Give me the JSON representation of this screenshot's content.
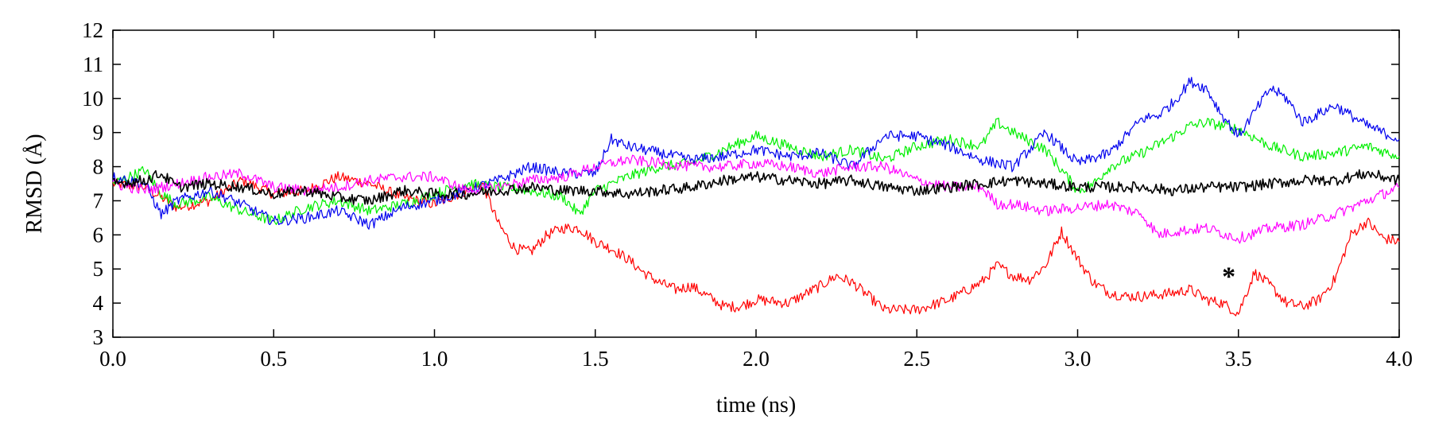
{
  "chart_data": {
    "type": "line",
    "title": "",
    "xlabel": "time (ns)",
    "ylabel": "RMSD (Å)",
    "xlim": [
      0.0,
      4.0
    ],
    "ylim": [
      3,
      12
    ],
    "xticks": [
      "0.0",
      "0.5",
      "1.0",
      "1.5",
      "2.0",
      "2.5",
      "3.0",
      "3.5",
      "4.0"
    ],
    "yticks": [
      "3",
      "4",
      "5",
      "6",
      "7",
      "8",
      "9",
      "10",
      "11",
      "12"
    ],
    "grid": false,
    "legend": "none",
    "annotations": [
      {
        "text": "*",
        "x": 3.47,
        "y": 4.85
      }
    ],
    "series": [
      {
        "color": "#ff0000",
        "x": [
          0.0,
          0.1,
          0.2,
          0.3,
          0.4,
          0.5,
          0.6,
          0.7,
          0.8,
          0.9,
          1.0,
          1.1,
          1.15,
          1.2,
          1.25,
          1.3,
          1.35,
          1.4,
          1.45,
          1.5,
          1.55,
          1.6,
          1.65,
          1.7,
          1.75,
          1.8,
          1.85,
          1.9,
          1.95,
          2.0,
          2.1,
          2.2,
          2.25,
          2.3,
          2.35,
          2.4,
          2.5,
          2.6,
          2.7,
          2.75,
          2.8,
          2.85,
          2.9,
          2.95,
          3.0,
          3.05,
          3.1,
          3.15,
          3.2,
          3.3,
          3.35,
          3.4,
          3.45,
          3.5,
          3.55,
          3.6,
          3.65,
          3.7,
          3.75,
          3.8,
          3.85,
          3.9,
          3.95,
          4.0
        ],
        "y": [
          7.5,
          7.4,
          6.8,
          7.0,
          7.6,
          7.2,
          7.3,
          7.7,
          7.5,
          7.1,
          6.9,
          7.3,
          7.5,
          6.3,
          5.6,
          5.5,
          6.0,
          6.2,
          6.2,
          5.8,
          5.6,
          5.3,
          4.9,
          4.6,
          4.4,
          4.5,
          4.2,
          3.9,
          3.9,
          4.1,
          4.0,
          4.5,
          4.8,
          4.6,
          4.2,
          3.8,
          3.8,
          4.1,
          4.6,
          5.1,
          4.8,
          4.7,
          5.1,
          6.1,
          5.3,
          4.6,
          4.3,
          4.2,
          4.2,
          4.3,
          4.4,
          4.1,
          4.0,
          3.7,
          4.9,
          4.5,
          4.0,
          3.9,
          4.1,
          4.7,
          6.0,
          6.4,
          5.9,
          5.8
        ]
      },
      {
        "color": "#00ee00",
        "x": [
          0.0,
          0.05,
          0.1,
          0.15,
          0.2,
          0.3,
          0.4,
          0.5,
          0.6,
          0.7,
          0.8,
          0.9,
          1.0,
          1.1,
          1.2,
          1.3,
          1.4,
          1.45,
          1.5,
          1.6,
          1.7,
          1.8,
          1.9,
          2.0,
          2.1,
          2.2,
          2.3,
          2.4,
          2.5,
          2.6,
          2.7,
          2.75,
          2.8,
          2.9,
          3.0,
          3.05,
          3.1,
          3.2,
          3.3,
          3.35,
          3.4,
          3.5,
          3.6,
          3.7,
          3.8,
          3.9,
          4.0
        ],
        "y": [
          7.5,
          7.7,
          7.9,
          7.2,
          6.9,
          7.1,
          6.7,
          6.4,
          6.8,
          7.0,
          6.7,
          6.9,
          7.2,
          7.5,
          7.4,
          7.3,
          7.1,
          6.6,
          7.3,
          7.7,
          8.0,
          8.1,
          8.5,
          8.9,
          8.6,
          8.3,
          8.5,
          8.2,
          8.6,
          8.8,
          8.6,
          9.3,
          9.0,
          8.5,
          7.3,
          7.5,
          8.0,
          8.4,
          8.9,
          9.2,
          9.3,
          9.1,
          8.6,
          8.3,
          8.4,
          8.6,
          8.3
        ]
      },
      {
        "color": "#0000ee",
        "x": [
          0.0,
          0.1,
          0.15,
          0.2,
          0.3,
          0.4,
          0.5,
          0.6,
          0.7,
          0.8,
          0.9,
          1.0,
          1.1,
          1.2,
          1.3,
          1.4,
          1.5,
          1.55,
          1.6,
          1.7,
          1.8,
          1.9,
          2.0,
          2.1,
          2.2,
          2.3,
          2.4,
          2.5,
          2.6,
          2.7,
          2.8,
          2.9,
          3.0,
          3.1,
          3.2,
          3.25,
          3.3,
          3.35,
          3.4,
          3.45,
          3.5,
          3.55,
          3.6,
          3.65,
          3.7,
          3.8,
          3.9,
          4.0
        ],
        "y": [
          7.7,
          7.5,
          6.6,
          7.0,
          7.3,
          6.9,
          6.4,
          6.5,
          6.7,
          6.3,
          6.8,
          7.0,
          7.3,
          7.6,
          8.0,
          7.8,
          7.8,
          8.8,
          8.6,
          8.4,
          8.2,
          8.3,
          8.5,
          8.3,
          8.4,
          8.0,
          8.9,
          8.9,
          8.6,
          8.2,
          8.0,
          9.0,
          8.1,
          8.4,
          9.4,
          9.5,
          9.9,
          10.5,
          10.3,
          9.5,
          8.9,
          9.6,
          10.3,
          10.0,
          9.3,
          9.8,
          9.2,
          8.8
        ]
      },
      {
        "color": "#ff00ff",
        "x": [
          0.0,
          0.1,
          0.2,
          0.3,
          0.4,
          0.5,
          0.6,
          0.7,
          0.8,
          0.9,
          1.0,
          1.1,
          1.2,
          1.3,
          1.4,
          1.5,
          1.6,
          1.7,
          1.8,
          1.9,
          2.0,
          2.1,
          2.2,
          2.3,
          2.4,
          2.5,
          2.6,
          2.7,
          2.75,
          2.8,
          2.9,
          3.0,
          3.1,
          3.2,
          3.25,
          3.3,
          3.4,
          3.5,
          3.6,
          3.7,
          3.8,
          3.9,
          4.0
        ],
        "y": [
          7.5,
          7.3,
          7.5,
          7.7,
          7.8,
          7.4,
          7.3,
          7.4,
          7.6,
          7.7,
          7.7,
          7.3,
          7.4,
          7.6,
          7.7,
          8.0,
          8.2,
          8.1,
          8.0,
          8.0,
          8.1,
          8.0,
          7.8,
          8.0,
          8.0,
          7.6,
          7.4,
          7.4,
          6.9,
          6.9,
          6.7,
          6.8,
          6.9,
          6.6,
          6.0,
          6.1,
          6.2,
          5.9,
          6.2,
          6.3,
          6.6,
          7.0,
          7.4
        ]
      },
      {
        "color": "#000000",
        "x": [
          0.0,
          0.1,
          0.15,
          0.2,
          0.3,
          0.4,
          0.5,
          0.6,
          0.7,
          0.8,
          0.9,
          1.0,
          1.1,
          1.2,
          1.3,
          1.4,
          1.5,
          1.6,
          1.7,
          1.8,
          1.9,
          2.0,
          2.1,
          2.2,
          2.3,
          2.4,
          2.5,
          2.6,
          2.7,
          2.8,
          2.9,
          3.0,
          3.1,
          3.2,
          3.3,
          3.4,
          3.5,
          3.6,
          3.7,
          3.8,
          3.9,
          4.0
        ],
        "y": [
          7.5,
          7.6,
          7.8,
          7.4,
          7.5,
          7.4,
          7.2,
          7.3,
          7.1,
          7.0,
          7.3,
          7.2,
          7.2,
          7.3,
          7.4,
          7.3,
          7.3,
          7.2,
          7.3,
          7.4,
          7.6,
          7.7,
          7.6,
          7.5,
          7.6,
          7.4,
          7.3,
          7.4,
          7.5,
          7.6,
          7.5,
          7.4,
          7.4,
          7.4,
          7.3,
          7.4,
          7.4,
          7.5,
          7.6,
          7.6,
          7.8,
          7.6
        ]
      }
    ]
  }
}
